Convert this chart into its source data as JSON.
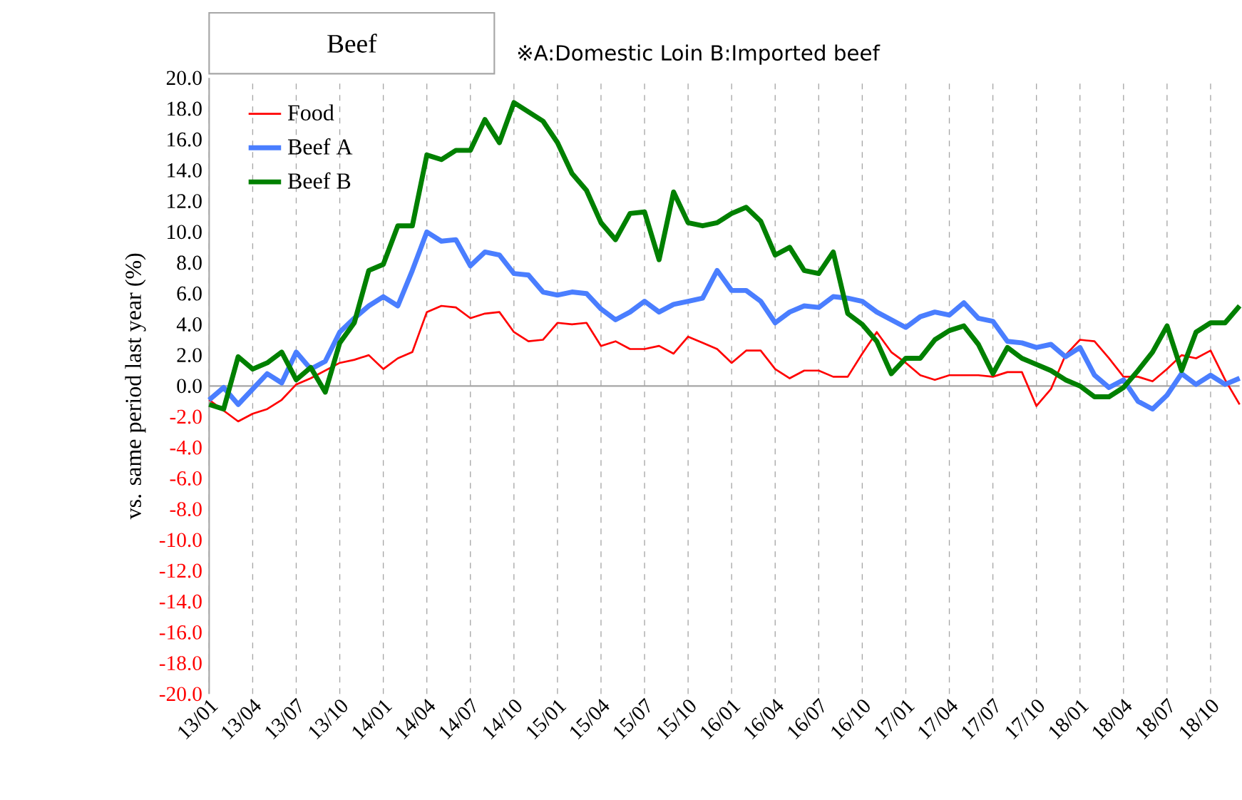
{
  "chart_data": {
    "type": "line",
    "title": "Beef",
    "annotations": [
      "※A:Domestic Loin B:Imported beef"
    ],
    "ylabel": "vs. same period last year (%)",
    "categories": [
      "13/01",
      null,
      null,
      "13/04",
      null,
      null,
      "13/07",
      null,
      null,
      "13/10",
      null,
      null,
      "14/01",
      null,
      null,
      "14/04",
      null,
      null,
      "14/07",
      null,
      null,
      "14/10",
      null,
      null,
      "15/01",
      null,
      null,
      "15/04",
      null,
      null,
      "15/07",
      null,
      null,
      "15/10",
      null,
      null,
      "16/01",
      null,
      null,
      "16/04",
      null,
      null,
      "16/07",
      null,
      null,
      "16/10",
      null,
      null,
      "17/01",
      null,
      null,
      "17/04",
      null,
      null,
      "17/07",
      null,
      null,
      "17/10",
      null,
      null,
      "18/01",
      null,
      null,
      "18/04",
      null,
      null,
      "18/07",
      null,
      null,
      "18/10",
      null,
      null
    ],
    "series": [
      {
        "name": "Food",
        "color": "#ff0000",
        "values": [
          -0.9,
          -1.6,
          -2.3,
          -1.8,
          -1.5,
          -0.9,
          0.1,
          0.5,
          1.0,
          1.5,
          1.7,
          2.0,
          1.1,
          1.8,
          2.2,
          4.8,
          5.2,
          5.1,
          4.4,
          4.7,
          4.8,
          3.5,
          2.9,
          3.0,
          4.1,
          4.0,
          4.1,
          2.6,
          2.9,
          2.4,
          2.4,
          2.6,
          2.1,
          3.2,
          2.8,
          2.4,
          1.5,
          2.3,
          2.3,
          1.1,
          0.5,
          1.0,
          1.0,
          0.6,
          0.6,
          2.1,
          3.5,
          2.2,
          1.5,
          0.7,
          0.4,
          0.7,
          0.7,
          0.7,
          0.6,
          0.9,
          0.9,
          -1.3,
          -0.2,
          2.0,
          3.0,
          2.9,
          1.8,
          0.6,
          0.6,
          0.3,
          1.1,
          2.0,
          1.8,
          2.3,
          0.4,
          -1.2
        ]
      },
      {
        "name": "Beef A",
        "color": "#4a7eff",
        "values": [
          -0.9,
          -0.1,
          -1.2,
          -0.2,
          0.8,
          0.2,
          2.2,
          1.1,
          1.6,
          3.5,
          4.4,
          5.2,
          5.8,
          5.2,
          7.5,
          10.0,
          9.4,
          9.5,
          7.8,
          8.7,
          8.5,
          7.3,
          7.2,
          6.1,
          5.9,
          6.1,
          6.0,
          5.0,
          4.3,
          4.8,
          5.5,
          4.8,
          5.3,
          5.5,
          5.7,
          7.5,
          6.2,
          6.2,
          5.5,
          4.1,
          4.8,
          5.2,
          5.1,
          5.8,
          5.7,
          5.5,
          4.8,
          4.3,
          3.8,
          4.5,
          4.8,
          4.6,
          5.4,
          4.4,
          4.2,
          2.9,
          2.8,
          2.5,
          2.7,
          1.9,
          2.5,
          0.7,
          -0.1,
          0.4,
          -1.0,
          -1.5,
          -0.6,
          0.8,
          0.1,
          0.7,
          0.1,
          0.5
        ]
      },
      {
        "name": "Beef B",
        "color": "#008000",
        "values": [
          -1.2,
          -1.5,
          1.9,
          1.1,
          1.5,
          2.2,
          0.4,
          1.2,
          -0.4,
          2.8,
          4.1,
          7.5,
          7.9,
          10.4,
          10.4,
          15.0,
          14.7,
          15.3,
          15.3,
          17.3,
          15.8,
          18.4,
          17.8,
          17.2,
          15.8,
          13.8,
          12.7,
          10.6,
          9.5,
          11.2,
          11.3,
          8.2,
          12.6,
          10.6,
          10.4,
          10.6,
          11.2,
          11.6,
          10.7,
          8.5,
          9.0,
          7.5,
          7.3,
          8.7,
          4.7,
          4.0,
          2.9,
          0.8,
          1.8,
          1.8,
          3.0,
          3.6,
          3.9,
          2.7,
          0.8,
          2.5,
          1.8,
          1.4,
          1.0,
          0.4,
          0.0,
          -0.7,
          -0.7,
          -0.1,
          1.0,
          2.2,
          3.9,
          1.0,
          3.5,
          4.1,
          4.1,
          5.2
        ]
      }
    ],
    "ylim": [
      -20,
      20
    ],
    "yticks": [
      {
        "value": -20,
        "label": "-20.0"
      },
      {
        "value": -18,
        "label": "-18.0"
      },
      {
        "value": -16,
        "label": "-16.0"
      },
      {
        "value": -14,
        "label": "-14.0"
      },
      {
        "value": -12,
        "label": "-12.0"
      },
      {
        "value": -10,
        "label": "-10.0"
      },
      {
        "value": -8,
        "label": "-8.0"
      },
      {
        "value": -6,
        "label": "-6.0"
      },
      {
        "value": -4,
        "label": "-4.0"
      },
      {
        "value": -2,
        "label": "-2.0"
      },
      {
        "value": 0,
        "label": "0.0"
      },
      {
        "value": 2,
        "label": "2.0"
      },
      {
        "value": 4,
        "label": "4.0"
      },
      {
        "value": 6,
        "label": "6.0"
      },
      {
        "value": 8,
        "label": "8.0"
      },
      {
        "value": 10,
        "label": "10.0"
      },
      {
        "value": 12,
        "label": "12.0"
      },
      {
        "value": 14,
        "label": "14.0"
      },
      {
        "value": 16,
        "label": "16.0"
      },
      {
        "value": 18,
        "label": "18.0"
      },
      {
        "value": 20,
        "label": "20.0"
      }
    ],
    "grid": "x",
    "legend": "top left",
    "marker": "none",
    "line_style": "solid"
  }
}
